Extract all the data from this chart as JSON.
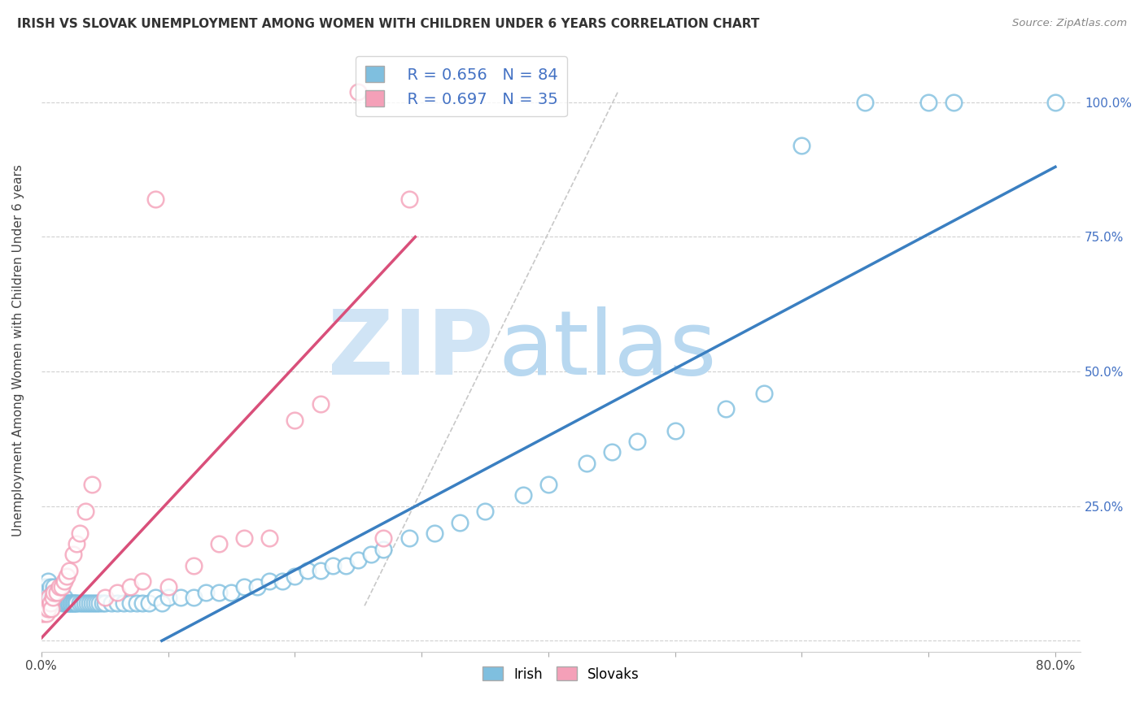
{
  "title": "IRISH VS SLOVAK UNEMPLOYMENT AMONG WOMEN WITH CHILDREN UNDER 6 YEARS CORRELATION CHART",
  "source": "Source: ZipAtlas.com",
  "ylabel": "Unemployment Among Women with Children Under 6 years",
  "xlim": [
    0.0,
    0.82
  ],
  "ylim": [
    -0.02,
    1.1
  ],
  "xticks": [
    0.0,
    0.1,
    0.2,
    0.3,
    0.4,
    0.5,
    0.6,
    0.7,
    0.8
  ],
  "xticklabels": [
    "0.0%",
    "",
    "",
    "",
    "",
    "",
    "",
    "",
    "80.0%"
  ],
  "yticks": [
    0.0,
    0.25,
    0.5,
    0.75,
    1.0
  ],
  "yticklabels_right": [
    "",
    "25.0%",
    "50.0%",
    "75.0%",
    "100.0%"
  ],
  "irish_R": 0.656,
  "irish_N": 84,
  "slovak_R": 0.697,
  "slovak_N": 35,
  "irish_color": "#7fbfdf",
  "irish_edge_color": "#7fbfdf",
  "slovak_color": "#f4a0b8",
  "slovak_edge_color": "#f4a0b8",
  "irish_line_color": "#3a7fc1",
  "slovak_line_color": "#d94f7a",
  "ref_line_color": "#c8c8c8",
  "watermark_zip_color": "#d0e4f5",
  "watermark_atlas_color": "#b8d8f0",
  "irish_line_x": [
    0.095,
    0.8
  ],
  "irish_line_y": [
    0.0,
    0.88
  ],
  "slovak_line_x": [
    0.0,
    0.295
  ],
  "slovak_line_y": [
    0.005,
    0.75
  ],
  "ref_line_x": [
    0.255,
    0.455
  ],
  "ref_line_y": [
    0.065,
    1.02
  ],
  "irish_scatter_x": [
    0.002,
    0.003,
    0.004,
    0.005,
    0.006,
    0.007,
    0.008,
    0.009,
    0.01,
    0.01,
    0.011,
    0.012,
    0.013,
    0.014,
    0.015,
    0.015,
    0.016,
    0.017,
    0.018,
    0.019,
    0.02,
    0.021,
    0.022,
    0.023,
    0.024,
    0.025,
    0.026,
    0.027,
    0.028,
    0.03,
    0.032,
    0.034,
    0.036,
    0.038,
    0.04,
    0.042,
    0.044,
    0.046,
    0.048,
    0.05,
    0.055,
    0.06,
    0.065,
    0.07,
    0.075,
    0.08,
    0.085,
    0.09,
    0.095,
    0.1,
    0.11,
    0.12,
    0.13,
    0.14,
    0.15,
    0.16,
    0.17,
    0.18,
    0.19,
    0.2,
    0.21,
    0.22,
    0.23,
    0.24,
    0.25,
    0.26,
    0.27,
    0.29,
    0.31,
    0.33,
    0.35,
    0.38,
    0.4,
    0.43,
    0.45,
    0.47,
    0.5,
    0.54,
    0.57,
    0.6,
    0.65,
    0.7,
    0.72,
    0.8
  ],
  "irish_scatter_y": [
    0.1,
    0.09,
    0.1,
    0.11,
    0.09,
    0.1,
    0.08,
    0.09,
    0.09,
    0.1,
    0.09,
    0.08,
    0.09,
    0.08,
    0.08,
    0.09,
    0.08,
    0.07,
    0.08,
    0.07,
    0.07,
    0.07,
    0.07,
    0.07,
    0.07,
    0.07,
    0.07,
    0.07,
    0.07,
    0.07,
    0.07,
    0.07,
    0.07,
    0.07,
    0.07,
    0.07,
    0.07,
    0.07,
    0.07,
    0.07,
    0.07,
    0.07,
    0.07,
    0.07,
    0.07,
    0.07,
    0.07,
    0.08,
    0.07,
    0.08,
    0.08,
    0.08,
    0.09,
    0.09,
    0.09,
    0.1,
    0.1,
    0.11,
    0.11,
    0.12,
    0.13,
    0.13,
    0.14,
    0.14,
    0.15,
    0.16,
    0.17,
    0.19,
    0.2,
    0.22,
    0.24,
    0.27,
    0.29,
    0.33,
    0.35,
    0.37,
    0.39,
    0.43,
    0.46,
    0.92,
    1.0,
    1.0,
    1.0,
    1.0
  ],
  "slovak_scatter_x": [
    0.001,
    0.003,
    0.004,
    0.005,
    0.006,
    0.007,
    0.008,
    0.009,
    0.01,
    0.012,
    0.014,
    0.016,
    0.018,
    0.02,
    0.022,
    0.025,
    0.028,
    0.03,
    0.035,
    0.04,
    0.05,
    0.06,
    0.07,
    0.08,
    0.09,
    0.1,
    0.12,
    0.14,
    0.16,
    0.18,
    0.2,
    0.22,
    0.25,
    0.27,
    0.29
  ],
  "slovak_scatter_y": [
    0.05,
    0.06,
    0.05,
    0.06,
    0.08,
    0.07,
    0.06,
    0.08,
    0.09,
    0.09,
    0.1,
    0.1,
    0.11,
    0.12,
    0.13,
    0.16,
    0.18,
    0.2,
    0.24,
    0.29,
    0.08,
    0.09,
    0.1,
    0.11,
    0.82,
    0.1,
    0.14,
    0.18,
    0.19,
    0.19,
    0.41,
    0.44,
    1.02,
    0.19,
    0.82
  ]
}
